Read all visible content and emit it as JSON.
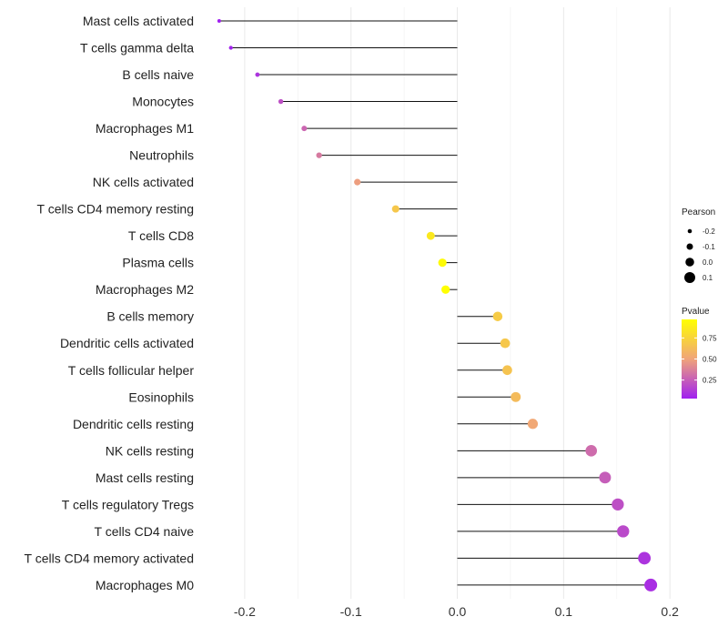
{
  "chart_data": {
    "type": "lollipop",
    "title": "",
    "xlabel": "",
    "ylabel": "",
    "xlim": [
      -0.235,
      0.205
    ],
    "x_ticks": [
      -0.2,
      -0.1,
      0.0,
      0.1,
      0.2
    ],
    "x_tick_labels": [
      "-0.2",
      "-0.1",
      "0.0",
      "0.1",
      "0.2"
    ],
    "grid": true,
    "categories": [
      "Mast cells activated",
      "T cells gamma delta",
      "B cells naive",
      "Monocytes",
      "Macrophages M1",
      "Neutrophils",
      "NK cells activated",
      "T cells CD4 memory resting",
      "T cells CD8",
      "Plasma cells",
      "Macrophages M2",
      "B cells memory",
      "Dendritic cells activated",
      "T cells follicular helper",
      "Eosinophils",
      "Dendritic cells resting",
      "NK cells resting",
      "Mast cells resting",
      "T cells regulatory  Tregs ",
      "T cells CD4 naive",
      "T cells CD4 memory activated",
      "Macrophages M0"
    ],
    "pearson": [
      -0.224,
      -0.213,
      -0.188,
      -0.166,
      -0.144,
      -0.13,
      -0.094,
      -0.058,
      -0.025,
      -0.014,
      -0.011,
      0.038,
      0.045,
      0.047,
      0.055,
      0.071,
      0.126,
      0.139,
      0.151,
      0.156,
      0.176,
      0.182
    ],
    "pvalue": [
      0.03,
      0.04,
      0.1,
      0.2,
      0.28,
      0.35,
      0.48,
      0.68,
      0.85,
      0.95,
      0.97,
      0.7,
      0.68,
      0.66,
      0.62,
      0.52,
      0.3,
      0.25,
      0.2,
      0.18,
      0.1,
      0.08
    ],
    "legend": {
      "placement": "right",
      "size_title": "Pearson",
      "size_breaks": [
        -0.2,
        -0.1,
        0.0,
        0.1
      ],
      "size_labels": [
        "-0.2",
        "-0.1",
        "0.0",
        "0.1"
      ],
      "color_title": "Pvalue",
      "color_breaks": [
        0.75,
        0.5,
        0.25
      ],
      "color_labels": [
        "0.75",
        "0.50",
        "0.25"
      ],
      "color_range": [
        0.03,
        0.97
      ],
      "color_low": "#a020f0",
      "color_mid": "#f0a47a",
      "color_high": "#ffff00"
    }
  }
}
